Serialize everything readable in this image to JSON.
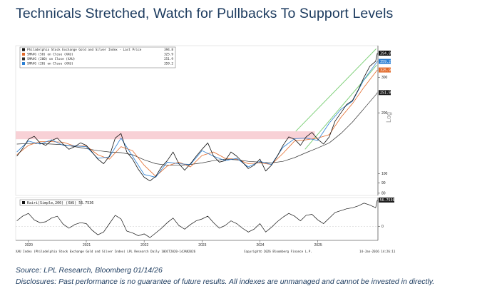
{
  "title": "Technicals Stretched, Watch for Pullbacks To Support Levels",
  "source_line": "Source: LPL Research, Bloomberg 01/14/26",
  "disclosure_line": "Disclosures: Past performance is no guarantee of future results. All indexes are unmanaged and cannot be invested in directly.",
  "colors": {
    "price": "#111111",
    "sma50": "#e36a2a",
    "sma200": "#333333",
    "sma20": "#2a7fd4",
    "resistance_band": "#f7c9cf",
    "trend_channel": "#7fd07a",
    "kairi": "#111111"
  },
  "chart_data": [
    {
      "type": "line",
      "title": "",
      "ylabel": "",
      "y_scale": "log",
      "ylim": [
        78,
        430
      ],
      "y_ticks": [
        80,
        90,
        100,
        200,
        300
      ],
      "x_ticks": [
        "2020",
        "2021",
        "2022",
        "2023",
        "2024",
        "2025"
      ],
      "x_range": [
        2019.78,
        2026.04
      ],
      "legend": {
        "placement": "top-left",
        "entries": [
          {
            "label": "Philadelphia Stock Exchange Gold and Silver Index - Last Price",
            "value": "394.8"
          },
          {
            "label": "SMAVG (50) on Close (XAU)",
            "value": "325.9"
          },
          {
            "label": "SMAVG (200) on Close (XAU)",
            "value": "251.9"
          },
          {
            "label": "SMAVG (20) on Close (XAU)",
            "value": "359.2"
          }
        ]
      },
      "value_badges": [
        {
          "series": "price",
          "label": "394.8",
          "value": 394.8
        },
        {
          "series": "sma20",
          "label": "359.2",
          "value": 359.2
        },
        {
          "series": "sma50",
          "label": "325.9",
          "value": 325.9
        },
        {
          "series": "sma200",
          "label": "251.9",
          "value": 251.9
        }
      ],
      "resistance_band": {
        "low": 148,
        "high": 162,
        "x_from": 2019.78,
        "x_to": 2024.95
      },
      "trend_channel": {
        "upper": [
          [
            2024.62,
            162
          ],
          [
            2026.01,
            415
          ]
        ],
        "lower": [
          [
            2024.78,
            132
          ],
          [
            2026.02,
            345
          ]
        ]
      },
      "side_label": "Log",
      "series": [
        {
          "name": "Philadelphia Stock Exchange Gold and Silver Index - Last Price",
          "x": [
            2019.8,
            2019.9,
            2020.0,
            2020.1,
            2020.2,
            2020.3,
            2020.4,
            2020.5,
            2020.6,
            2020.7,
            2020.8,
            2020.9,
            2021.0,
            2021.1,
            2021.2,
            2021.3,
            2021.4,
            2021.5,
            2021.6,
            2021.7,
            2021.8,
            2021.9,
            2022.0,
            2022.1,
            2022.2,
            2022.3,
            2022.4,
            2022.5,
            2022.6,
            2022.7,
            2022.8,
            2022.9,
            2023.0,
            2023.1,
            2023.2,
            2023.3,
            2023.4,
            2023.5,
            2023.6,
            2023.7,
            2023.8,
            2023.9,
            2024.0,
            2024.1,
            2024.2,
            2024.3,
            2024.4,
            2024.5,
            2024.6,
            2024.7,
            2024.8,
            2024.9,
            2025.0,
            2025.1,
            2025.2,
            2025.3,
            2025.4,
            2025.5,
            2025.6,
            2025.7,
            2025.8,
            2025.9,
            2026.0,
            2026.03
          ],
          "values": [
            122,
            133,
            148,
            153,
            142,
            138,
            146,
            150,
            140,
            132,
            136,
            142,
            138,
            128,
            118,
            112,
            122,
            150,
            158,
            128,
            118,
            105,
            96,
            92,
            97,
            108,
            116,
            128,
            112,
            104,
            112,
            122,
            132,
            142,
            122,
            114,
            116,
            128,
            122,
            114,
            106,
            110,
            118,
            103,
            110,
            122,
            138,
            152,
            148,
            138,
            152,
            160,
            148,
            140,
            152,
            182,
            200,
            220,
            230,
            260,
            300,
            340,
            360,
            394.8
          ]
        },
        {
          "name": "SMAVG (50) on Close (XAU)",
          "x": [
            2019.8,
            2020.0,
            2020.2,
            2020.4,
            2020.6,
            2020.8,
            2021.0,
            2021.2,
            2021.4,
            2021.6,
            2021.8,
            2022.0,
            2022.2,
            2022.4,
            2022.6,
            2022.8,
            2023.0,
            2023.2,
            2023.4,
            2023.6,
            2023.8,
            2024.0,
            2024.2,
            2024.4,
            2024.6,
            2024.8,
            2025.0,
            2025.2,
            2025.4,
            2025.6,
            2025.8,
            2026.0,
            2026.03
          ],
          "values": [
            124,
            138,
            144,
            144,
            143,
            137,
            137,
            124,
            118,
            136,
            130,
            110,
            97,
            109,
            114,
            108,
            123,
            128,
            119,
            118,
            112,
            113,
            111,
            126,
            145,
            147,
            150,
            156,
            190,
            222,
            268,
            318,
            325.9
          ]
        },
        {
          "name": "SMAVG (200) on Close (XAU)",
          "x": [
            2019.8,
            2020.0,
            2020.2,
            2020.4,
            2020.6,
            2020.8,
            2021.0,
            2021.2,
            2021.4,
            2021.6,
            2021.8,
            2022.0,
            2022.2,
            2022.4,
            2022.6,
            2022.8,
            2023.0,
            2023.2,
            2023.4,
            2023.6,
            2023.8,
            2024.0,
            2024.2,
            2024.4,
            2024.6,
            2024.8,
            2025.0,
            2025.2,
            2025.4,
            2025.6,
            2025.8,
            2026.0,
            2026.03
          ],
          "values": [
            140,
            141,
            141,
            140,
            139,
            136,
            133,
            130,
            128,
            127,
            124,
            117,
            112,
            110,
            110,
            111,
            113,
            116,
            118,
            117,
            115,
            114,
            113,
            115,
            120,
            127,
            134,
            142,
            158,
            180,
            210,
            245,
            251.9
          ]
        },
        {
          "name": "SMAVG (20) on Close (XAU)",
          "x": [
            2019.8,
            2020.0,
            2020.2,
            2020.4,
            2020.6,
            2020.8,
            2021.0,
            2021.2,
            2021.4,
            2021.6,
            2021.8,
            2022.0,
            2022.2,
            2022.4,
            2022.6,
            2022.8,
            2023.0,
            2023.2,
            2023.4,
            2023.6,
            2023.8,
            2024.0,
            2024.2,
            2024.4,
            2024.6,
            2024.8,
            2025.0,
            2025.2,
            2025.4,
            2025.6,
            2025.8,
            2026.0,
            2026.03
          ],
          "values": [
            128,
            145,
            140,
            147,
            138,
            137,
            136,
            119,
            121,
            150,
            122,
            99,
            96,
            114,
            112,
            111,
            130,
            122,
            116,
            119,
            108,
            115,
            111,
            135,
            149,
            150,
            146,
            178,
            208,
            228,
            292,
            350,
            359.2
          ]
        }
      ]
    },
    {
      "type": "line",
      "title": "",
      "legend": {
        "placement": "top-left",
        "entries": [
          {
            "label": "Kairi(Simple,200) (XAU)",
            "value": "56.7536"
          }
        ]
      },
      "value_badges": [
        {
          "label": "56.7536",
          "value": 56.7536
        }
      ],
      "y_ticks": [
        0
      ],
      "ylim": [
        -30,
        62
      ],
      "series": [
        {
          "name": "Kairi(Simple,200) (XAU)",
          "x": [
            2019.8,
            2019.9,
            2020.0,
            2020.1,
            2020.2,
            2020.3,
            2020.4,
            2020.5,
            2020.6,
            2020.7,
            2020.8,
            2020.9,
            2021.0,
            2021.1,
            2021.2,
            2021.3,
            2021.4,
            2021.5,
            2021.6,
            2021.7,
            2021.8,
            2021.9,
            2022.0,
            2022.1,
            2022.2,
            2022.3,
            2022.4,
            2022.5,
            2022.6,
            2022.7,
            2022.8,
            2022.9,
            2023.0,
            2023.1,
            2023.2,
            2023.3,
            2023.4,
            2023.5,
            2023.6,
            2023.7,
            2023.8,
            2023.9,
            2024.0,
            2024.1,
            2024.2,
            2024.3,
            2024.4,
            2024.5,
            2024.6,
            2024.7,
            2024.8,
            2024.9,
            2025.0,
            2025.1,
            2025.2,
            2025.3,
            2025.4,
            2025.5,
            2025.6,
            2025.7,
            2025.8,
            2025.9,
            2026.0,
            2026.03
          ],
          "values": [
            12,
            22,
            28,
            14,
            8,
            10,
            18,
            22,
            5,
            -4,
            4,
            8,
            6,
            -8,
            -18,
            -12,
            6,
            24,
            16,
            -10,
            -14,
            -20,
            -16,
            -24,
            -14,
            -4,
            8,
            18,
            2,
            -6,
            4,
            12,
            16,
            22,
            8,
            -4,
            2,
            12,
            6,
            -4,
            -12,
            -6,
            6,
            -12,
            -2,
            10,
            20,
            28,
            22,
            12,
            24,
            26,
            14,
            6,
            18,
            30,
            34,
            38,
            40,
            44,
            50,
            46,
            40,
            56.75
          ]
        }
      ]
    }
  ],
  "footer": {
    "left_text": "XAU Index (Philadelphia Stock Exchange Gold and Silver Index) LPL Research Daily 10OCT2020-14JAN2026",
    "center_text": "Copyright© 2026 Bloomberg Finance L.P.",
    "right_text": "14-Jan-2026 14:26:11"
  }
}
